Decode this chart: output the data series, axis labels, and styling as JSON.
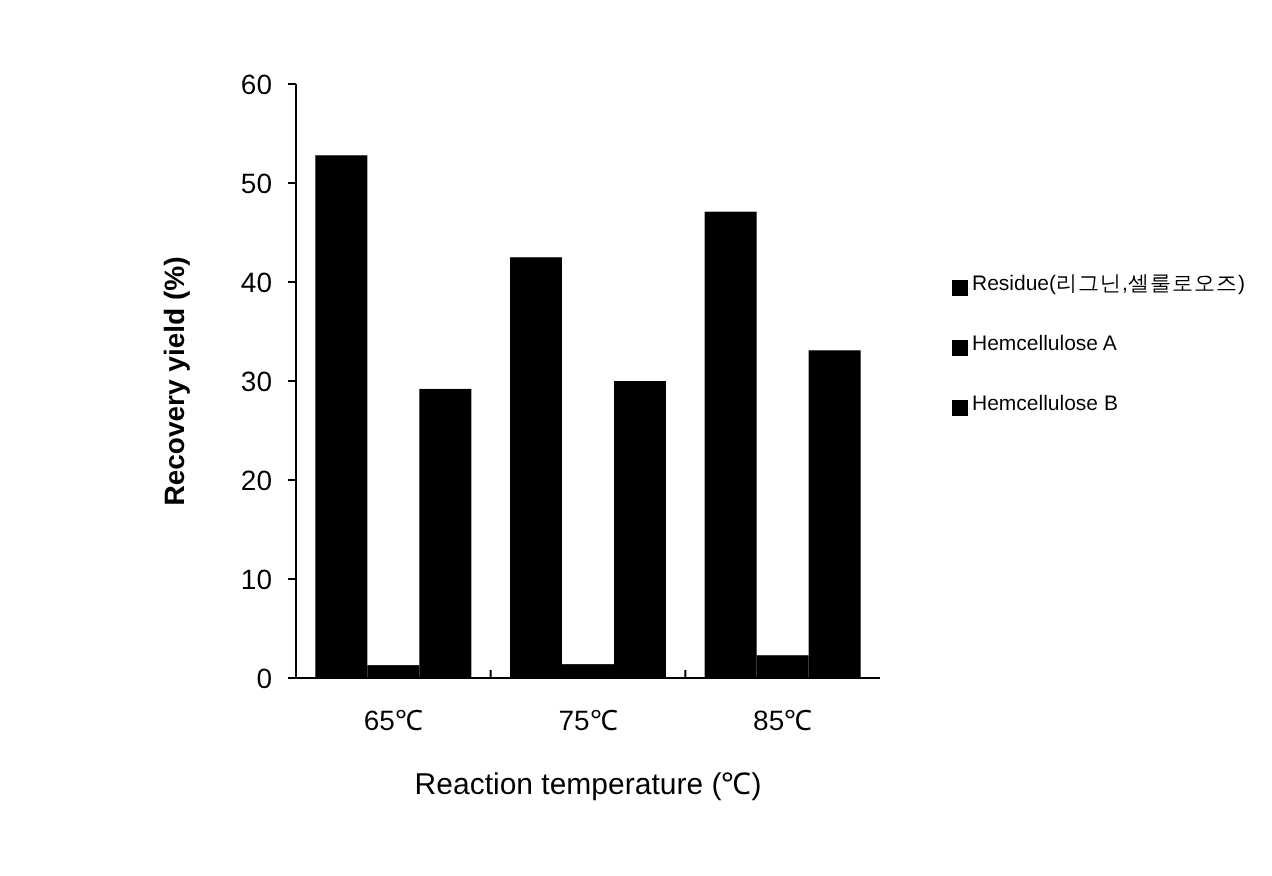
{
  "chart_data": {
    "type": "bar",
    "xlabel": "Reaction temperature (℃)",
    "ylabel": "Recovery yield (%)",
    "categories": [
      "65℃",
      "75℃",
      "85℃"
    ],
    "series": [
      {
        "name": "Residue(리그닌,셀룰로오즈)",
        "color": "#000000",
        "values": [
          52.8,
          42.5,
          47.1
        ]
      },
      {
        "name": "Hemcellulose A",
        "color": "#000000",
        "values": [
          1.3,
          1.4,
          2.3
        ]
      },
      {
        "name": "Hemcellulose B",
        "color": "#000000",
        "values": [
          29.2,
          30.0,
          33.1
        ]
      }
    ],
    "ylim": [
      0,
      60
    ],
    "yticks": [
      0,
      10,
      20,
      30,
      40,
      50,
      60
    ],
    "grid": false,
    "legend": "right"
  }
}
